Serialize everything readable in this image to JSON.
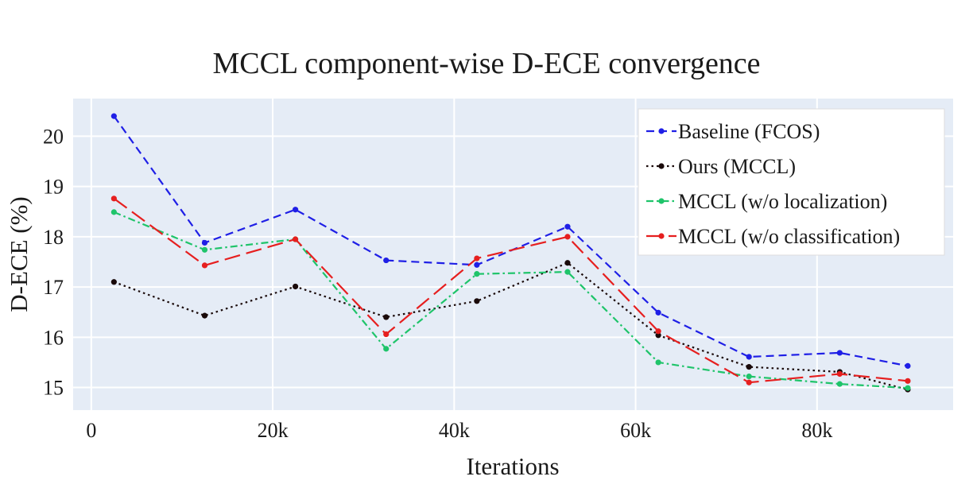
{
  "chart_data": {
    "type": "line",
    "title": "MCCL component-wise D-ECE convergence",
    "xlabel": "Iterations",
    "ylabel": "D-ECE (%)",
    "xlim": [
      -2000,
      95000
    ],
    "ylim": [
      14.55,
      20.75
    ],
    "x_ticks": [
      {
        "value": 0,
        "label": "0"
      },
      {
        "value": 20000,
        "label": "20k"
      },
      {
        "value": 40000,
        "label": "40k"
      },
      {
        "value": 60000,
        "label": "60k"
      },
      {
        "value": 80000,
        "label": "80k"
      }
    ],
    "y_ticks": [
      {
        "value": 15,
        "label": "15"
      },
      {
        "value": 16,
        "label": "16"
      },
      {
        "value": 17,
        "label": "17"
      },
      {
        "value": 18,
        "label": "18"
      },
      {
        "value": 19,
        "label": "19"
      },
      {
        "value": 20,
        "label": "20"
      }
    ],
    "grid": true,
    "legend_position": "top-right",
    "x": [
      2500,
      12500,
      22500,
      32500,
      42500,
      52500,
      62500,
      72500,
      82500,
      90000
    ],
    "series": [
      {
        "name": "Baseline (FCOS)",
        "color": "#1f1fe6",
        "dash": "dashed",
        "values": [
          20.4,
          17.88,
          18.54,
          17.53,
          17.44,
          18.2,
          16.49,
          15.61,
          15.69,
          15.43
        ]
      },
      {
        "name": "Ours (MCCL)",
        "color": "#1a0a0a",
        "dash": "dotted",
        "values": [
          17.1,
          16.43,
          17.01,
          16.4,
          16.72,
          17.48,
          16.04,
          15.41,
          15.31,
          14.96
        ]
      },
      {
        "name": "MCCL (w/o localization)",
        "color": "#1fc46a",
        "dash": "dashdot",
        "values": [
          18.49,
          17.74,
          17.95,
          15.77,
          17.26,
          17.3,
          15.5,
          15.22,
          15.07,
          14.99
        ]
      },
      {
        "name": "MCCL (w/o classification)",
        "color": "#e61f1f",
        "dash": "longdash",
        "values": [
          18.76,
          17.43,
          17.95,
          16.06,
          17.57,
          18.0,
          16.12,
          15.1,
          15.27,
          15.13
        ]
      }
    ]
  }
}
